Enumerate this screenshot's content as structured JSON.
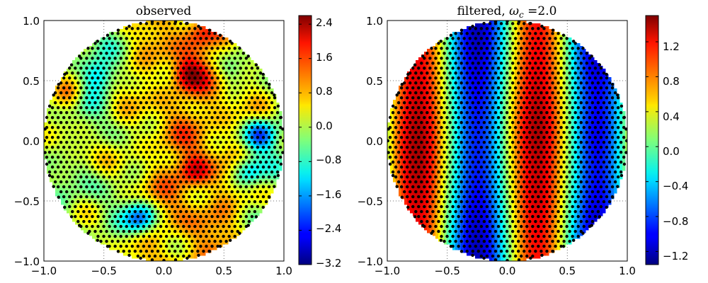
{
  "chart_data": [
    {
      "type": "heatmap",
      "title": "observed",
      "title_parts": [],
      "xlim": [
        -1.0,
        1.0
      ],
      "ylim": [
        -1.0,
        1.0
      ],
      "x_ticks": [
        "−1.0",
        "−0.5",
        "0.0",
        "0.5",
        "1.0"
      ],
      "y_ticks": [
        "1.0",
        "0.5",
        "0.0",
        "−0.5",
        "−1.0"
      ],
      "colorbar": {
        "range": [
          -3.2,
          2.6
        ],
        "ticks": [
          "2.4",
          "1.6",
          "0.8",
          "0.0",
          "−0.8",
          "−1.6",
          "−2.4",
          "−3.2"
        ],
        "tick_values": [
          2.4,
          1.6,
          0.8,
          0.0,
          -0.8,
          -1.6,
          -2.4,
          -3.2
        ]
      },
      "colormap": "jet",
      "domain": "unit disk",
      "observation_points": "black dots on a triangular lattice inside the unit disk",
      "field_description": "noisy field: mostly green/yellow with red-orange patches near x=-0.8 and x=0.2..0.4, blue patches near (0.8,0.05), (-0.2,-0.6), (0.7,-0.2)",
      "features": [
        {
          "x": -0.8,
          "y": 0.4,
          "value": 1.4
        },
        {
          "x": -0.75,
          "y": -0.1,
          "value": 1.2
        },
        {
          "x": 0.2,
          "y": 0.55,
          "value": 1.8
        },
        {
          "x": 0.25,
          "y": -0.25,
          "value": 1.6
        },
        {
          "x": 0.3,
          "y": 0.9,
          "value": 1.3
        },
        {
          "x": 0.8,
          "y": 0.05,
          "value": -2.0
        },
        {
          "x": -0.2,
          "y": -0.65,
          "value": -1.8
        },
        {
          "x": 0.7,
          "y": -0.25,
          "value": -1.4
        },
        {
          "x": -0.55,
          "y": 0.55,
          "value": -1.0
        },
        {
          "x": 0.55,
          "y": 0.6,
          "value": -0.6
        }
      ]
    },
    {
      "type": "heatmap",
      "title": "filtered, ",
      "title_parts": [
        {
          "text": "filtered, ",
          "style": "normal"
        },
        {
          "text": "ω",
          "style": "italic"
        },
        {
          "text": "c",
          "style": "subscript-italic"
        },
        {
          "text": " =2.0",
          "style": "normal"
        }
      ],
      "xlim": [
        -1.0,
        1.0
      ],
      "ylim": [
        -1.0,
        1.0
      ],
      "x_ticks": [
        "−1.0",
        "−0.5",
        "0.0",
        "0.5",
        "1.0"
      ],
      "y_ticks": [
        "1.0",
        "0.5",
        "0.0",
        "−0.5",
        "−1.0"
      ],
      "colorbar": {
        "range": [
          -1.35,
          1.5
        ],
        "ticks": [
          "1.2",
          "0.8",
          "0.4",
          "0.0",
          "−0.4",
          "−0.8",
          "−1.2"
        ],
        "tick_values": [
          1.2,
          0.8,
          0.4,
          0.0,
          -0.4,
          -0.8,
          -1.2
        ]
      },
      "colormap": "jet",
      "domain": "unit disk",
      "omega_c": 2.0,
      "observation_points": "black dots on a triangular lattice inside the unit disk",
      "field_description": "smooth vertical bands: red near x=-0.8 and x=0.25, blue near x=-0.25 and x=0.75, minimum near (0.75,0.05)",
      "features": [
        {
          "x": -0.8,
          "y": 0.3,
          "value": 1.1
        },
        {
          "x": 0.25,
          "y": 0.4,
          "value": 1.2
        },
        {
          "x": 0.25,
          "y": -0.2,
          "value": 1.1
        },
        {
          "x": -0.25,
          "y": -0.35,
          "value": -1.0
        },
        {
          "x": -0.3,
          "y": 0.6,
          "value": -1.0
        },
        {
          "x": 0.75,
          "y": 0.05,
          "value": -1.3
        }
      ]
    }
  ]
}
